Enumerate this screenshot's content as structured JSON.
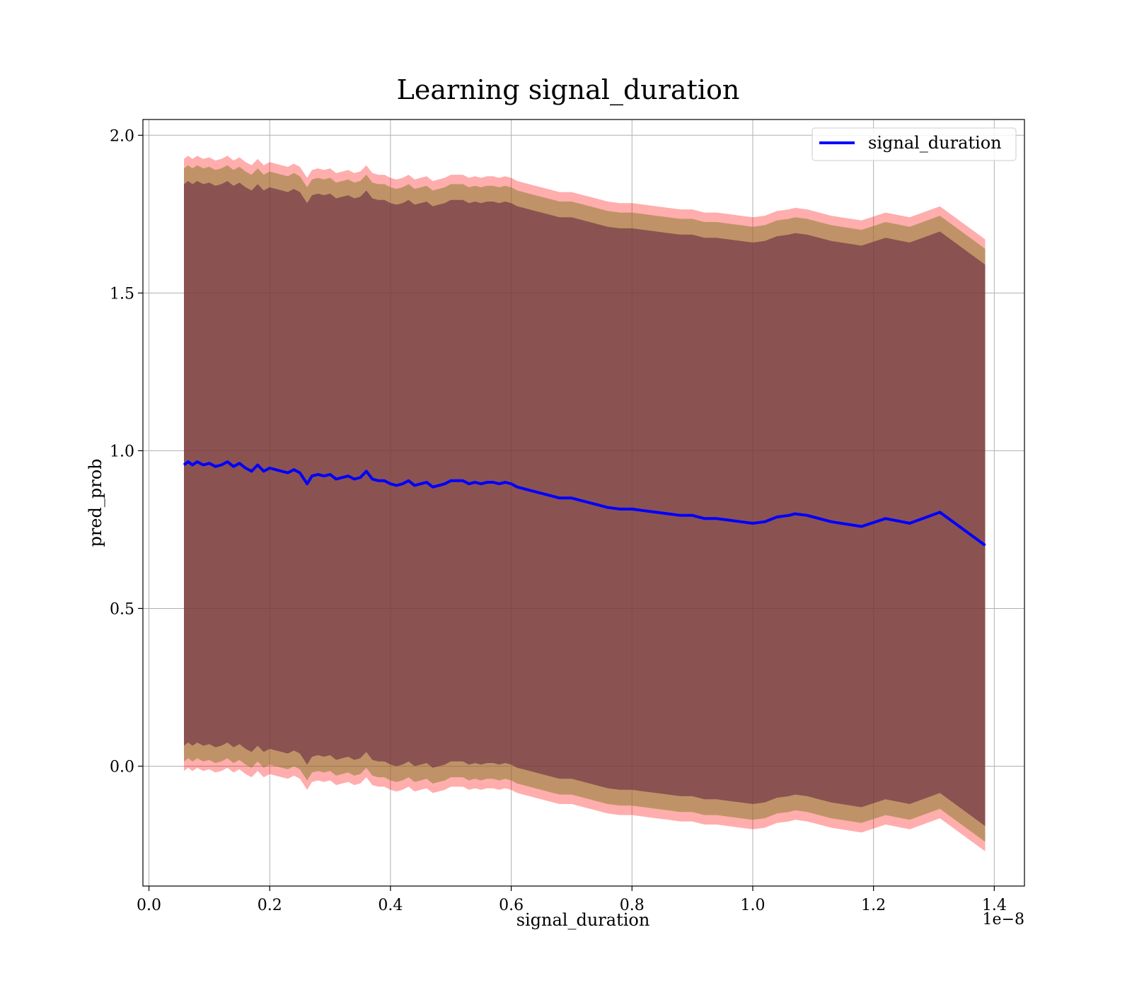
{
  "chart_data": {
    "type": "line",
    "title": "Learning signal_duration",
    "xlabel": "signal_duration",
    "ylabel": "pred_prob",
    "x_offset_label": "1e−8",
    "xlim": [
      -0.01,
      1.45
    ],
    "ylim": [
      -0.38,
      2.05
    ],
    "x_ticks": [
      0.0,
      0.2,
      0.4,
      0.6,
      0.8,
      1.0,
      1.2,
      1.4
    ],
    "x_tick_labels": [
      "0.0",
      "0.2",
      "0.4",
      "0.6",
      "0.8",
      "1.0",
      "1.2",
      "1.4"
    ],
    "y_ticks": [
      0.0,
      0.5,
      1.0,
      1.5,
      2.0
    ],
    "y_tick_labels": [
      "0.0",
      "0.5",
      "1.0",
      "1.5",
      "2.0"
    ],
    "grid": true,
    "legend": {
      "position": "top-right",
      "entries": [
        "signal_duration"
      ]
    },
    "colors": {
      "line": "#0000ff",
      "outer_band": "#ff0000",
      "middle_band": "#8b7d2e",
      "inner_band": "#6a2a45",
      "grid": "#b0b0b0"
    },
    "series": [
      {
        "name": "signal_duration",
        "x": [
          0.058,
          0.065,
          0.072,
          0.08,
          0.09,
          0.1,
          0.11,
          0.12,
          0.13,
          0.14,
          0.15,
          0.16,
          0.17,
          0.18,
          0.19,
          0.2,
          0.21,
          0.22,
          0.23,
          0.24,
          0.25,
          0.262,
          0.27,
          0.28,
          0.29,
          0.3,
          0.31,
          0.32,
          0.33,
          0.34,
          0.35,
          0.36,
          0.37,
          0.38,
          0.39,
          0.4,
          0.41,
          0.42,
          0.43,
          0.44,
          0.45,
          0.46,
          0.47,
          0.48,
          0.49,
          0.5,
          0.51,
          0.52,
          0.53,
          0.54,
          0.55,
          0.56,
          0.57,
          0.58,
          0.59,
          0.6,
          0.61,
          0.62,
          0.64,
          0.66,
          0.68,
          0.7,
          0.72,
          0.74,
          0.76,
          0.78,
          0.8,
          0.82,
          0.84,
          0.86,
          0.88,
          0.9,
          0.92,
          0.94,
          0.96,
          0.98,
          1.0,
          1.02,
          1.04,
          1.06,
          1.07,
          1.09,
          1.13,
          1.18,
          1.22,
          1.26,
          1.31,
          1.385
        ],
        "y": [
          0.955,
          0.965,
          0.955,
          0.965,
          0.955,
          0.96,
          0.95,
          0.955,
          0.965,
          0.95,
          0.96,
          0.945,
          0.935,
          0.955,
          0.935,
          0.945,
          0.94,
          0.935,
          0.93,
          0.94,
          0.93,
          0.895,
          0.92,
          0.925,
          0.92,
          0.925,
          0.91,
          0.915,
          0.92,
          0.91,
          0.915,
          0.935,
          0.91,
          0.905,
          0.905,
          0.895,
          0.89,
          0.895,
          0.905,
          0.89,
          0.895,
          0.9,
          0.885,
          0.89,
          0.895,
          0.905,
          0.905,
          0.905,
          0.895,
          0.9,
          0.895,
          0.9,
          0.9,
          0.895,
          0.9,
          0.895,
          0.885,
          0.88,
          0.87,
          0.86,
          0.85,
          0.85,
          0.84,
          0.83,
          0.82,
          0.815,
          0.815,
          0.81,
          0.805,
          0.8,
          0.795,
          0.795,
          0.785,
          0.785,
          0.78,
          0.775,
          0.77,
          0.775,
          0.79,
          0.795,
          0.8,
          0.795,
          0.775,
          0.76,
          0.785,
          0.77,
          0.805,
          0.7
        ]
      }
    ],
    "bands": [
      {
        "id": "outer",
        "half_width": 0.97
      },
      {
        "id": "middle",
        "half_width": 0.94
      },
      {
        "id": "inner",
        "half_width": 0.89
      }
    ]
  }
}
